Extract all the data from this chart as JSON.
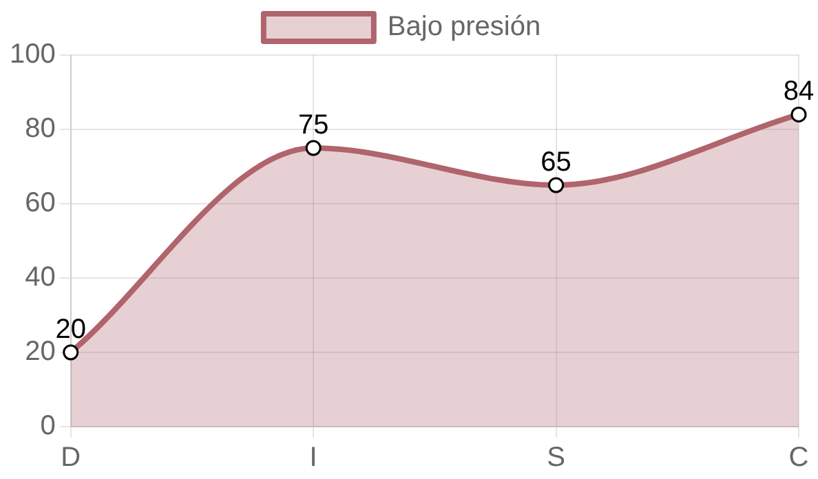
{
  "chart_data": {
    "type": "area",
    "categories": [
      "D",
      "I",
      "S",
      "C"
    ],
    "series": [
      {
        "name": "Bajo presión",
        "color": "#b0646c",
        "values": [
          20,
          75,
          65,
          84
        ]
      }
    ],
    "ylim": [
      0,
      100
    ],
    "yticks": [
      0,
      20,
      40,
      60,
      80,
      100
    ],
    "grid": true,
    "legend": "top",
    "marker": "circle",
    "line_style": "solid",
    "data_labels": true
  }
}
